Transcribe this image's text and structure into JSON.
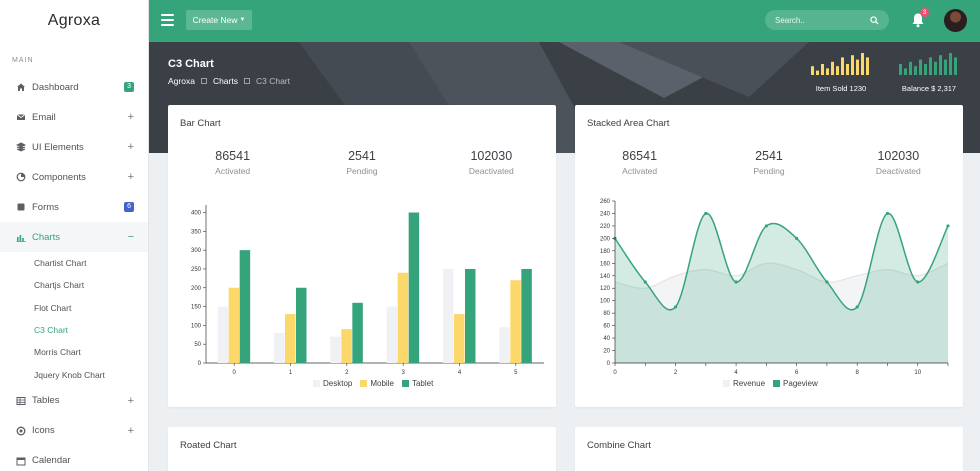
{
  "app": {
    "name": "Agroxa"
  },
  "sidebar": {
    "section": "MAIN",
    "items": [
      {
        "label": "Dashboard",
        "icon": "home-icon",
        "badge": "3",
        "badge_color": "#36a47a"
      },
      {
        "label": "Email",
        "icon": "mail-icon",
        "expand": "+"
      },
      {
        "label": "UI Elements",
        "icon": "layers-icon",
        "expand": "+"
      },
      {
        "label": "Components",
        "icon": "pie-icon",
        "expand": "+"
      },
      {
        "label": "Forms",
        "icon": "form-icon",
        "badge": "6",
        "badge_color": "#4564c9"
      },
      {
        "label": "Charts",
        "icon": "bar-chart-icon",
        "expand": "−"
      },
      {
        "label": "Tables",
        "icon": "table-icon",
        "expand": "+"
      },
      {
        "label": "Icons",
        "icon": "target-icon",
        "expand": "+"
      },
      {
        "label": "Calendar",
        "icon": "calendar-icon"
      }
    ],
    "chart_sub": [
      "Chartist Chart",
      "Chartjs Chart",
      "Flot Chart",
      "C3 Chart",
      "Morris Chart",
      "Jquery Knob Chart"
    ]
  },
  "topbar": {
    "create_label": "Create New",
    "search_placeholder": "Search..",
    "notification_count": "3"
  },
  "header": {
    "title": "C3 Chart",
    "breadcrumb": [
      "Agroxa",
      "Charts",
      "C3 Chart"
    ],
    "stat1_label": "Item Sold 1230",
    "stat2_label": "Balance $ 2,317",
    "stat1_bars": [
      4,
      2,
      5,
      3,
      6,
      4,
      8,
      5,
      9,
      7,
      10,
      8
    ],
    "stat2_bars": [
      5,
      3,
      6,
      4,
      7,
      5,
      8,
      6,
      9,
      7,
      10,
      8
    ]
  },
  "cards": {
    "bar": {
      "title": "Bar Chart",
      "kpis": [
        {
          "value": "86541",
          "label": "Activated"
        },
        {
          "value": "2541",
          "label": "Pending"
        },
        {
          "value": "102030",
          "label": "Deactivated"
        }
      ]
    },
    "area": {
      "title": "Stacked Area Chart",
      "kpis": [
        {
          "value": "86541",
          "label": "Activated"
        },
        {
          "value": "2541",
          "label": "Pending"
        },
        {
          "value": "102030",
          "label": "Deactivated"
        }
      ]
    },
    "rotated": {
      "title": "Roated Chart"
    },
    "combine": {
      "title": "Combine Chart"
    }
  },
  "chart_data": [
    {
      "type": "bar",
      "categories": [
        "0",
        "1",
        "2",
        "3",
        "4",
        "5"
      ],
      "series": [
        {
          "name": "Desktop",
          "color": "#f0f1f4",
          "values": [
            150,
            80,
            70,
            150,
            250,
            95
          ]
        },
        {
          "name": "Mobile",
          "color": "#fcd76a",
          "values": [
            200,
            130,
            90,
            240,
            130,
            220
          ]
        },
        {
          "name": "Tablet",
          "color": "#36a47a",
          "values": [
            300,
            200,
            160,
            400,
            250,
            250
          ]
        }
      ],
      "yticks": [
        0,
        50,
        100,
        150,
        200,
        250,
        300,
        350,
        400
      ],
      "ylim": [
        0,
        420
      ]
    },
    {
      "type": "area",
      "x": [
        0,
        1,
        2,
        3,
        4,
        5,
        6,
        7,
        8,
        9,
        10,
        11
      ],
      "series": [
        {
          "name": "Revenue",
          "color": "#f0f1f4",
          "values": [
            130,
            120,
            140,
            150,
            140,
            160,
            150,
            130,
            140,
            150,
            140,
            160
          ]
        },
        {
          "name": "Pageview",
          "color": "#36a47a",
          "values": [
            200,
            130,
            90,
            240,
            130,
            220,
            200,
            130,
            90,
            240,
            130,
            220
          ]
        }
      ],
      "yticks": [
        0,
        20,
        40,
        60,
        80,
        100,
        120,
        140,
        160,
        180,
        200,
        220,
        240,
        260
      ],
      "xticks": [
        0,
        2,
        4,
        6,
        8,
        10
      ],
      "ylim": [
        0,
        260
      ],
      "xlim": [
        0,
        11
      ]
    }
  ]
}
